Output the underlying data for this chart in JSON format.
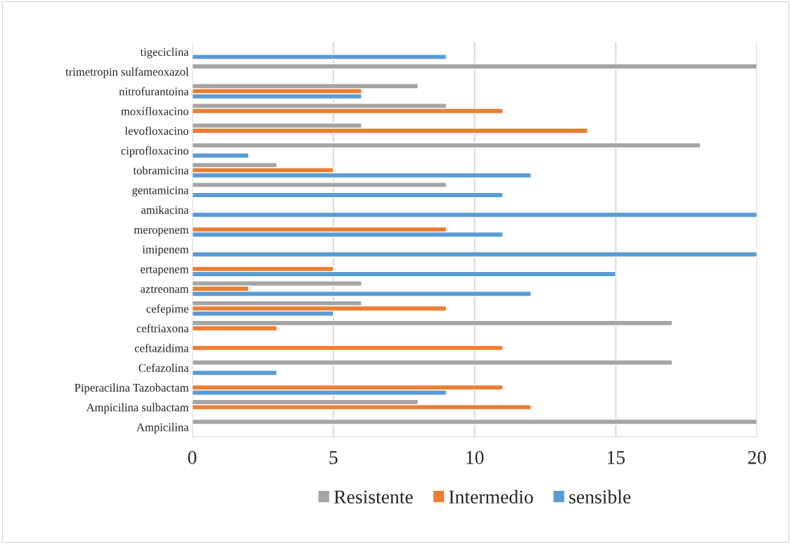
{
  "chart_data": {
    "type": "bar",
    "orientation": "horizontal",
    "categories": [
      "tigeciclina",
      "trimetropin sulfameoxazol",
      "nitrofurantoina",
      "moxifloxacino",
      "levofloxacino",
      "ciprofloxacino",
      "tobramicina",
      "gentamicina",
      "amikacina",
      "meropenem",
      "imipenem",
      "ertapenem",
      "aztreonam",
      "cefepime",
      "ceftriaxona",
      "ceftazidima",
      "Cefazolina",
      "Piperacilina Tazobactam",
      "Ampicilina sulbactam",
      "Ampicilina"
    ],
    "series": [
      {
        "name": "Resistente",
        "color": "#a5a5a5",
        "values": [
          null,
          20,
          8,
          9,
          6,
          18,
          3,
          9,
          null,
          null,
          null,
          null,
          6,
          6,
          17,
          null,
          17,
          null,
          8,
          20
        ]
      },
      {
        "name": "Intermedio",
        "color": "#ed7d31",
        "values": [
          null,
          null,
          6,
          11,
          14,
          null,
          5,
          null,
          null,
          9,
          null,
          5,
          2,
          9,
          3,
          11,
          null,
          11,
          12,
          null
        ]
      },
      {
        "name": "sensible",
        "color": "#5b9bd5",
        "values": [
          9,
          null,
          6,
          null,
          null,
          2,
          12,
          11,
          20,
          11,
          20,
          15,
          12,
          5,
          null,
          null,
          3,
          9,
          null,
          null
        ]
      }
    ],
    "xlim": [
      0,
      20
    ],
    "xticks": [
      0,
      5,
      10,
      15,
      20
    ],
    "grid": "x",
    "legend": "bottom"
  }
}
